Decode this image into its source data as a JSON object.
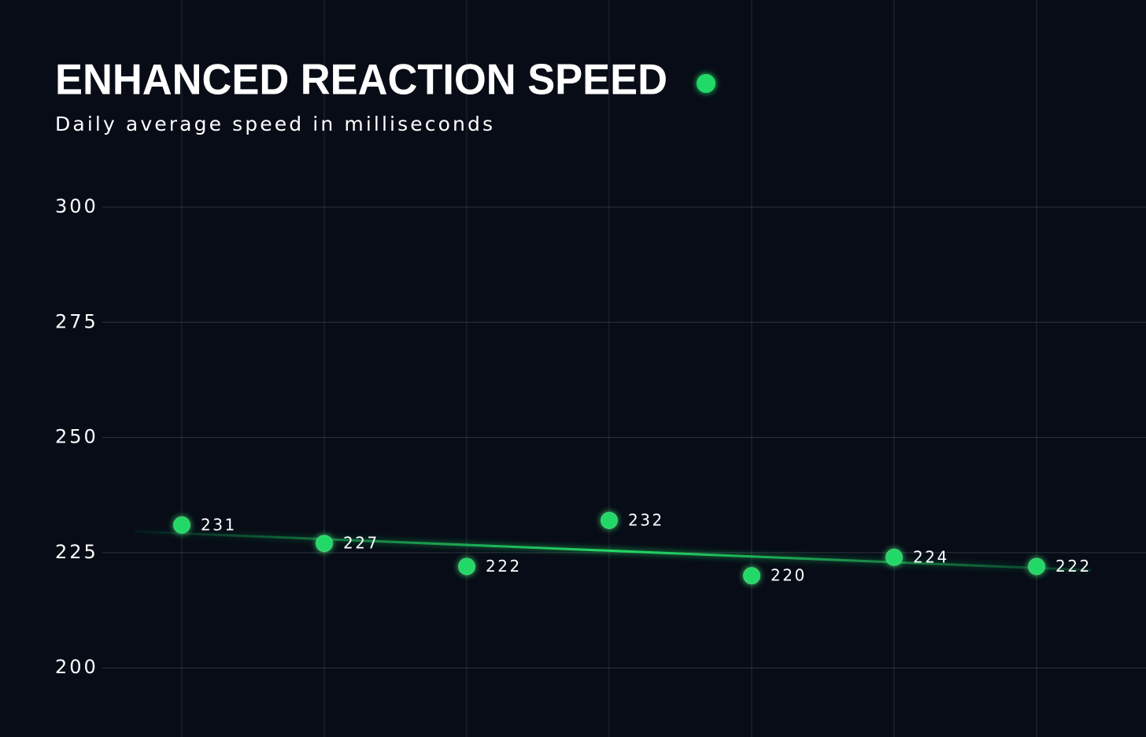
{
  "chart_data": {
    "type": "scatter",
    "title": "ENHANCED REACTION SPEED",
    "subtitle": "Daily average speed in milliseconds",
    "categories": [
      null,
      null,
      null,
      null,
      null,
      null,
      null
    ],
    "values": [
      231,
      227,
      222,
      232,
      220,
      224,
      222
    ],
    "color": "#22d866",
    "trendline": true,
    "ylim": [
      185,
      300
    ],
    "yticks": [
      200,
      225,
      250,
      275,
      300
    ],
    "grid": true
  }
}
